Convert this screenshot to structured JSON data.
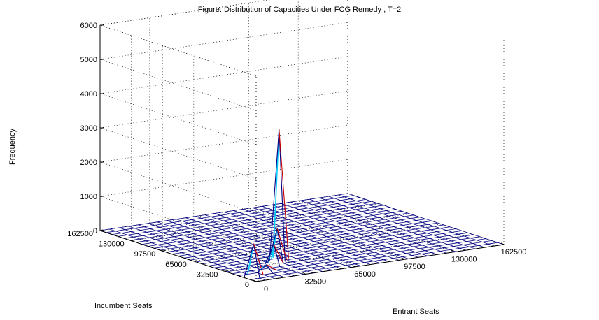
{
  "figure": {
    "title": "Figure: Distribution of Capacities Under FCG Remedy , T=2"
  },
  "chart_data": {
    "type": "surface",
    "title": "Figure: Distribution of Capacities Under FCG Remedy , T=2",
    "xlabel": "Entrant Seats",
    "ylabel": "Incumbent Seats",
    "zlabel": "Frequency",
    "xlim": [
      0,
      162500
    ],
    "ylim": [
      0,
      162500
    ],
    "zlim": [
      0,
      6000
    ],
    "x_ticks": [
      "0",
      "32500",
      "65000",
      "97500",
      "130000",
      "162500"
    ],
    "y_ticks": [
      "0",
      "32500",
      "65000",
      "97500",
      "130000",
      "162500"
    ],
    "z_ticks": [
      "0",
      "1000",
      "2000",
      "3000",
      "4000",
      "5000",
      "6000"
    ],
    "grid": true,
    "mesh_size": [
      26,
      26
    ],
    "peaks": [
      {
        "x": 40625,
        "y": 40625,
        "frequency": 3800
      },
      {
        "x": 6250,
        "y": 12500,
        "frequency": 950
      },
      {
        "x": 31250,
        "y": 31250,
        "frequency": 600
      },
      {
        "x": 37500,
        "y": 37500,
        "frequency": 950
      },
      {
        "x": 18750,
        "y": 18750,
        "frequency": 200
      }
    ],
    "colors": {
      "mesh": "#000080",
      "peak_light": "#00ccff",
      "peak_dark": "#000080",
      "peak_edge": "#cc0000"
    }
  }
}
